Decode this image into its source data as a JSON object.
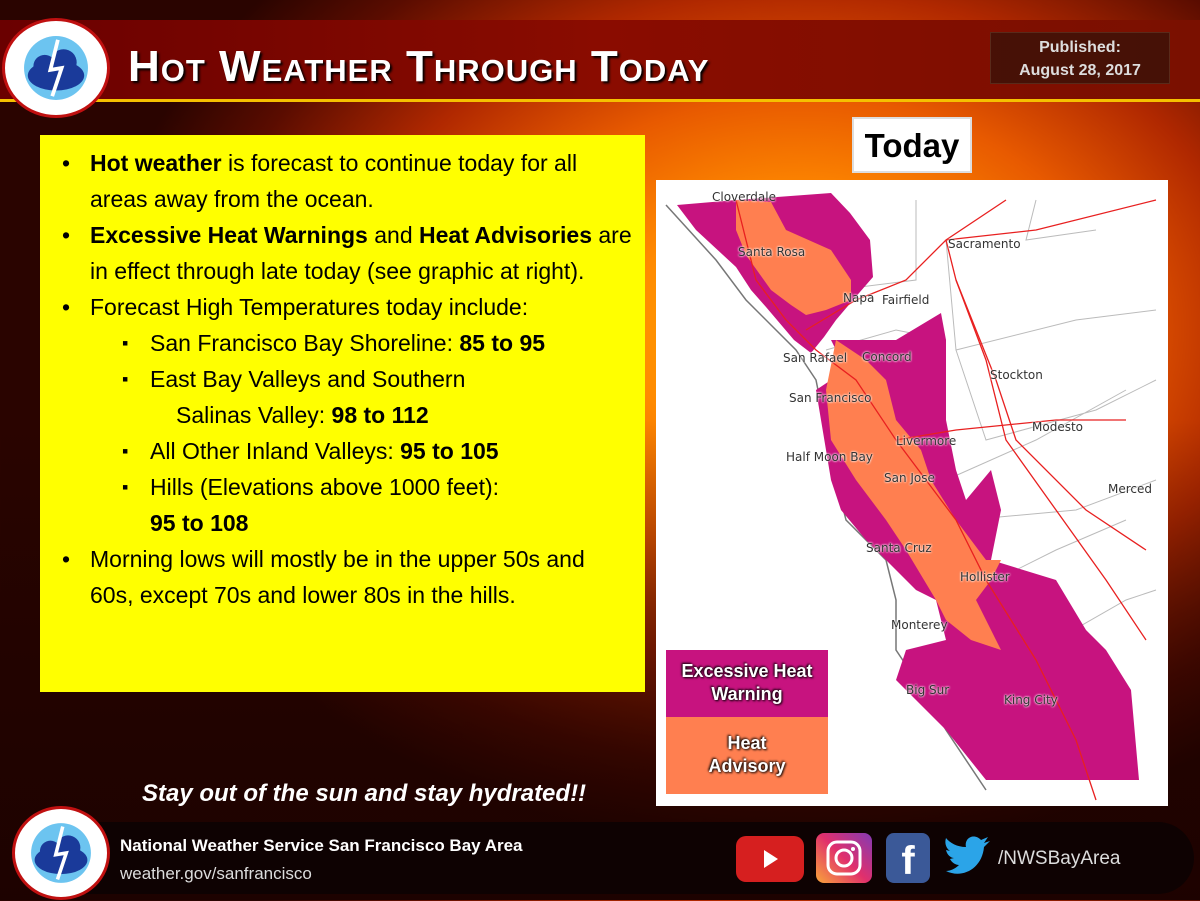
{
  "header": {
    "title": "Hot Weather Through Today",
    "published_label": "Published:",
    "published_date": "August 28, 2017"
  },
  "logo": {
    "text": "NATIONAL WEATHER SERVICE"
  },
  "bullets": {
    "b1_bold": "Hot weather",
    "b1_rest": " is forecast to continue today for all areas away from the ocean.",
    "b2_bold1": "Excessive Heat Warnings",
    "b2_mid": " and ",
    "b2_bold2": "Heat Advisories",
    "b2_rest": " are in effect through late today (see graphic at right).",
    "b3": "Forecast High Temperatures today include:",
    "sub": [
      {
        "label": "San Francisco Bay Shoreline: ",
        "value": "85 to 95"
      },
      {
        "label": "East Bay Valleys and Southern",
        "label2": "Salinas Valley: ",
        "value": "98 to 112"
      },
      {
        "label": "All Other Inland Valleys: ",
        "value": "95 to 105"
      },
      {
        "label": "Hills (Elevations above 1000 feet):",
        "value": "95 to 108"
      }
    ],
    "b4": "Morning lows will mostly be in the upper 50s and 60s, except 70s and lower 80s in the hills."
  },
  "map": {
    "label": "Today",
    "cities": [
      "Cloverdale",
      "Santa Rosa",
      "Napa",
      "Fairfield",
      "Sacramento",
      "San Rafael",
      "Concord",
      "Stockton",
      "San Francisco",
      "Livermore",
      "Modesto",
      "Half Moon Bay",
      "San Jose",
      "Merced",
      "Santa Cruz",
      "Hollister",
      "Monterey",
      "Big Sur",
      "King City"
    ],
    "legend": [
      {
        "label": "Excessive Heat Warning",
        "color": "#c7137f"
      },
      {
        "label": "Heat Advisory",
        "color": "#ff7f50"
      }
    ]
  },
  "slogan": "Stay out of the sun and stay hydrated!!",
  "footer": {
    "org": "National Weather Service San Francisco Bay Area",
    "url": "weather.gov/sanfrancisco",
    "handle": "/NWSBayArea",
    "social": [
      "youtube-icon",
      "instagram-icon",
      "facebook-icon",
      "twitter-icon"
    ]
  }
}
